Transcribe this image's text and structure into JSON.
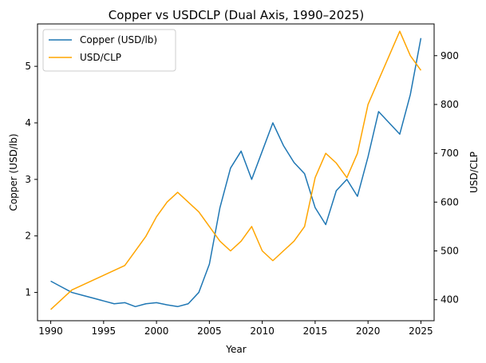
{
  "chart_data": {
    "type": "line",
    "title": "Copper vs USDCLP (Dual Axis, 1990–2025)",
    "xlabel": "Year",
    "ylabel_left": "Copper (USD/lb)",
    "ylabel_right": "USD/CLP",
    "xlim": [
      1988.75,
      2026.25
    ],
    "ylim_left": [
      0.5,
      5.75
    ],
    "ylim_right": [
      357,
      965
    ],
    "x_ticks": [
      1990,
      1995,
      2000,
      2005,
      2010,
      2015,
      2020,
      2025
    ],
    "y_left_ticks": [
      1,
      2,
      3,
      4,
      5
    ],
    "y_right_ticks": [
      400,
      500,
      600,
      700,
      800,
      900
    ],
    "grid": false,
    "legend": "upper left",
    "x": [
      1990,
      1991,
      1992,
      1993,
      1994,
      1995,
      1996,
      1997,
      1998,
      1999,
      2000,
      2001,
      2002,
      2003,
      2004,
      2005,
      2006,
      2007,
      2008,
      2009,
      2010,
      2011,
      2012,
      2013,
      2014,
      2015,
      2016,
      2017,
      2018,
      2019,
      2020,
      2021,
      2022,
      2023,
      2024,
      2025
    ],
    "series": [
      {
        "name": "Copper (USD/lb)",
        "axis": "left",
        "color": "#1f77b4",
        "values": [
          1.2,
          1.1,
          1.0,
          0.95,
          0.9,
          0.85,
          0.8,
          0.82,
          0.75,
          0.8,
          0.82,
          0.78,
          0.75,
          0.8,
          1.0,
          1.5,
          2.5,
          3.2,
          3.5,
          3.0,
          3.5,
          4.0,
          3.6,
          3.3,
          3.1,
          2.5,
          2.2,
          2.8,
          3.0,
          2.7,
          3.4,
          4.2,
          4.0,
          3.8,
          4.5,
          5.5
        ]
      },
      {
        "name": "USD/CLP",
        "axis": "right",
        "color": "#ffa500",
        "values": [
          380,
          400,
          420,
          430,
          440,
          450,
          460,
          470,
          500,
          530,
          570,
          600,
          620,
          600,
          580,
          550,
          520,
          500,
          520,
          550,
          500,
          480,
          500,
          520,
          550,
          650,
          700,
          680,
          650,
          700,
          800,
          850,
          900,
          950,
          900,
          870
        ]
      }
    ]
  }
}
